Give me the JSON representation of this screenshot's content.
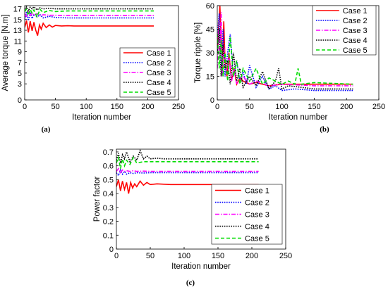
{
  "colors": {
    "Case 1": "#ff0000",
    "Case 2": "#0000ff",
    "Case 3": "#ff00ff",
    "Case 4": "#000000",
    "Case 5": "#00dd00"
  },
  "styles": {
    "Case 1": "solid",
    "Case 2": "dotted",
    "Case 3": "dashdot",
    "Case 4": "dotted",
    "Case 5": "dashed"
  },
  "chart_data": [
    {
      "id": "a",
      "caption": "(a)",
      "type": "line",
      "title": "",
      "xlabel": "Iteration number",
      "ylabel": "Average torque [N.m]",
      "xlim": [
        0,
        250
      ],
      "ylim": [
        0,
        17.6
      ],
      "xticks": [
        0,
        50,
        100,
        150,
        200,
        250
      ],
      "xtick_labels": [
        "0",
        "50",
        "100",
        "150",
        "200",
        "250"
      ],
      "yticks": [
        0,
        3,
        5,
        7,
        9,
        11,
        13,
        15,
        17
      ],
      "ytick_labels": [
        "0",
        "3",
        "5",
        "7",
        "9",
        "11",
        "13",
        "15",
        "17"
      ],
      "legend": "bottom-right",
      "series": [
        {
          "name": "Case 1",
          "x": [
            0,
            3,
            6,
            9,
            12,
            15,
            18,
            21,
            24,
            27,
            30,
            35,
            40,
            45,
            50,
            60,
            70,
            80,
            100,
            150,
            210
          ],
          "y": [
            13.5,
            14.8,
            12.6,
            14.7,
            12.9,
            14.5,
            13.0,
            12.0,
            14.0,
            13.2,
            14.3,
            13.5,
            14.0,
            13.6,
            13.9,
            13.8,
            13.85,
            13.8,
            13.8,
            13.8,
            13.8
          ]
        },
        {
          "name": "Case 2",
          "x": [
            0,
            3,
            6,
            9,
            12,
            15,
            20,
            25,
            30,
            40,
            50,
            70,
            100,
            150,
            210
          ],
          "y": [
            15.0,
            16.5,
            14.8,
            16.4,
            15.2,
            16.0,
            15.5,
            15.9,
            15.3,
            15.6,
            15.4,
            15.3,
            15.3,
            15.3,
            15.3
          ]
        },
        {
          "name": "Case 3",
          "x": [
            0,
            3,
            6,
            9,
            12,
            15,
            20,
            25,
            30,
            40,
            50,
            70,
            100,
            150,
            210
          ],
          "y": [
            16.2,
            15.4,
            16.5,
            15.6,
            16.3,
            15.8,
            16.1,
            15.7,
            15.9,
            15.8,
            15.8,
            15.75,
            15.75,
            15.75,
            15.75
          ]
        },
        {
          "name": "Case 4",
          "x": [
            0,
            3,
            6,
            9,
            12,
            15,
            20,
            25,
            30,
            40,
            50,
            70,
            100,
            150,
            210
          ],
          "y": [
            16.9,
            17.4,
            16.6,
            17.3,
            17.0,
            17.4,
            16.8,
            17.2,
            17.0,
            17.1,
            17.0,
            17.0,
            17.0,
            17.0,
            17.0
          ]
        },
        {
          "name": "Case 5",
          "x": [
            0,
            3,
            6,
            9,
            12,
            15,
            20,
            25,
            30,
            40,
            50,
            70,
            100,
            150,
            210
          ],
          "y": [
            16.5,
            17.0,
            15.8,
            16.9,
            16.2,
            16.8,
            15.5,
            16.9,
            16.3,
            16.7,
            16.5,
            16.6,
            16.6,
            16.6,
            16.6
          ]
        }
      ]
    },
    {
      "id": "b",
      "caption": "(b)",
      "type": "line",
      "title": "",
      "xlabel": "Iteration number",
      "ylabel": "Torque ripple [%]",
      "xlim": [
        0,
        250
      ],
      "ylim": [
        0,
        60
      ],
      "xticks": [
        0,
        50,
        100,
        150,
        200,
        250
      ],
      "xtick_labels": [
        "0",
        "50",
        "100",
        "150",
        "200",
        "250"
      ],
      "yticks": [
        0,
        15,
        30,
        45,
        60
      ],
      "ytick_labels": [
        "0",
        "15",
        "30",
        "45",
        "60"
      ],
      "legend": "top-right",
      "series": [
        {
          "name": "Case 1",
          "x": [
            0,
            2,
            4,
            6,
            8,
            10,
            12,
            15,
            18,
            22,
            26,
            30,
            35,
            40,
            50,
            60,
            80,
            100,
            150,
            210
          ],
          "y": [
            30,
            45,
            60,
            38,
            20,
            50,
            25,
            15,
            30,
            12,
            20,
            10,
            14,
            12,
            10,
            11,
            9,
            10,
            10,
            10
          ]
        },
        {
          "name": "Case 2",
          "x": [
            0,
            3,
            6,
            9,
            12,
            16,
            20,
            25,
            30,
            35,
            40,
            45,
            50,
            60,
            70,
            80,
            90,
            100,
            120,
            150,
            210
          ],
          "y": [
            40,
            55,
            20,
            45,
            15,
            30,
            42,
            15,
            25,
            12,
            18,
            10,
            22,
            8,
            15,
            7,
            9,
            6,
            7,
            6,
            6
          ]
        },
        {
          "name": "Case 3",
          "x": [
            0,
            2,
            4,
            6,
            8,
            10,
            14,
            18,
            22,
            26,
            30,
            40,
            50,
            60,
            80,
            100,
            150,
            210
          ],
          "y": [
            20,
            45,
            25,
            56,
            15,
            35,
            18,
            28,
            12,
            20,
            10,
            15,
            10,
            12,
            9,
            10,
            9,
            9
          ]
        },
        {
          "name": "Case 4",
          "x": [
            0,
            3,
            6,
            9,
            12,
            16,
            20,
            25,
            30,
            35,
            40,
            50,
            60,
            70,
            80,
            90,
            95,
            100,
            110,
            130,
            150,
            210
          ],
          "y": [
            30,
            45,
            15,
            35,
            20,
            25,
            10,
            30,
            12,
            20,
            8,
            15,
            9,
            18,
            7,
            12,
            20,
            7,
            9,
            8,
            7,
            7
          ]
        },
        {
          "name": "Case 5",
          "x": [
            0,
            3,
            6,
            9,
            12,
            16,
            20,
            25,
            30,
            35,
            40,
            50,
            60,
            70,
            80,
            100,
            110,
            120,
            125,
            130,
            150,
            210
          ],
          "y": [
            42,
            20,
            38,
            15,
            30,
            12,
            40,
            15,
            25,
            10,
            20,
            12,
            20,
            10,
            14,
            10,
            12,
            10,
            20,
            10,
            11,
            10
          ]
        }
      ]
    },
    {
      "id": "c",
      "caption": "(c)",
      "type": "line",
      "title": "",
      "xlabel": "Iteration number",
      "ylabel": "Power factor",
      "xlim": [
        0,
        250
      ],
      "ylim": [
        0,
        0.72
      ],
      "xticks": [
        0,
        50,
        100,
        150,
        200,
        250
      ],
      "xtick_labels": [
        "0",
        "50",
        "100",
        "150",
        "200",
        "250"
      ],
      "yticks": [
        0,
        0.1,
        0.2,
        0.3,
        0.4,
        0.5,
        0.6,
        0.7
      ],
      "ytick_labels": [
        "0",
        "0.1",
        "0.2",
        "0.3",
        "0.4",
        "0.5",
        "0.6",
        "0.7"
      ],
      "legend": "bottom-right",
      "series": [
        {
          "name": "Case 1",
          "x": [
            0,
            3,
            6,
            9,
            12,
            15,
            18,
            21,
            24,
            27,
            30,
            35,
            40,
            45,
            50,
            60,
            80,
            100,
            150,
            210
          ],
          "y": [
            0.45,
            0.5,
            0.42,
            0.49,
            0.43,
            0.48,
            0.4,
            0.48,
            0.44,
            0.47,
            0.45,
            0.49,
            0.46,
            0.48,
            0.465,
            0.47,
            0.465,
            0.465,
            0.465,
            0.465
          ]
        },
        {
          "name": "Case 2",
          "x": [
            0,
            3,
            6,
            9,
            12,
            15,
            20,
            25,
            30,
            40,
            50,
            70,
            100,
            150,
            210
          ],
          "y": [
            0.55,
            0.53,
            0.57,
            0.54,
            0.56,
            0.54,
            0.55,
            0.545,
            0.55,
            0.548,
            0.55,
            0.55,
            0.55,
            0.55,
            0.55
          ]
        },
        {
          "name": "Case 3",
          "x": [
            0,
            3,
            6,
            9,
            12,
            15,
            20,
            25,
            30,
            40,
            50,
            70,
            100,
            150,
            210
          ],
          "y": [
            0.56,
            0.58,
            0.55,
            0.57,
            0.56,
            0.565,
            0.56,
            0.565,
            0.56,
            0.562,
            0.56,
            0.56,
            0.56,
            0.56,
            0.56
          ]
        },
        {
          "name": "Case 4",
          "x": [
            0,
            3,
            6,
            9,
            12,
            15,
            20,
            25,
            30,
            35,
            40,
            45,
            50,
            60,
            70,
            100,
            150,
            210
          ],
          "y": [
            0.64,
            0.69,
            0.62,
            0.68,
            0.65,
            0.7,
            0.63,
            0.67,
            0.64,
            0.71,
            0.65,
            0.67,
            0.65,
            0.655,
            0.65,
            0.65,
            0.65,
            0.65
          ]
        },
        {
          "name": "Case 5",
          "x": [
            0,
            3,
            6,
            9,
            12,
            15,
            20,
            25,
            30,
            40,
            50,
            70,
            100,
            150,
            210
          ],
          "y": [
            0.62,
            0.66,
            0.58,
            0.65,
            0.6,
            0.64,
            0.61,
            0.66,
            0.62,
            0.63,
            0.63,
            0.63,
            0.63,
            0.63,
            0.63
          ]
        }
      ]
    }
  ]
}
